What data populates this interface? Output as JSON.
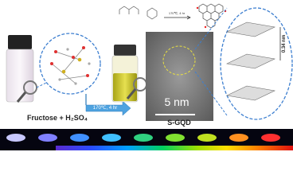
{
  "reaction_scheme": {
    "condition": "170℃, 4 hr"
  },
  "left_label": "Fructose + H₂SO₄",
  "arrow_label": "170℃, 4 hr",
  "product_label": "S-GQD",
  "tem_scale_bar": "5 nm",
  "interlayer_spacing": "0.34 nm"
}
